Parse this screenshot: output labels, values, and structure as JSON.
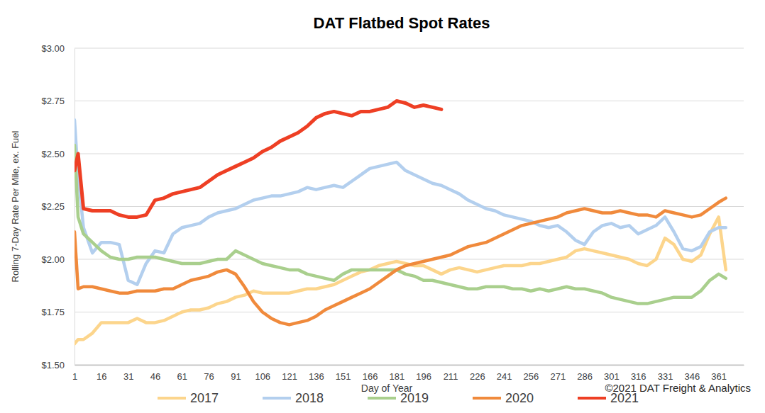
{
  "chart_data": {
    "type": "line",
    "title": "DAT Flatbed Spot Rates",
    "xlabel": "Day of Year",
    "ylabel": "Rolling 7-Day Rate Per Mile, ex. Fuel",
    "annotations": [
      "©2021 DAT Freight & Analytics"
    ],
    "grid": true,
    "legend": "bottom",
    "xlim": [
      1,
      375
    ],
    "xticks": [
      1,
      16,
      31,
      46,
      61,
      76,
      91,
      106,
      121,
      136,
      151,
      166,
      181,
      196,
      211,
      226,
      241,
      256,
      271,
      286,
      301,
      316,
      331,
      346,
      361
    ],
    "ylim": [
      1.5,
      3.0
    ],
    "yticks": [
      {
        "value": 1.5,
        "label": "$1.50"
      },
      {
        "value": 1.75,
        "label": "$1.75"
      },
      {
        "value": 2.0,
        "label": "$2.00"
      },
      {
        "value": 2.25,
        "label": "$2.25"
      },
      {
        "value": 2.5,
        "label": "$2.50"
      },
      {
        "value": 2.75,
        "label": "$2.75"
      },
      {
        "value": 3.0,
        "label": "$3.00"
      }
    ],
    "x": [
      1,
      3,
      6,
      11,
      16,
      21,
      26,
      31,
      36,
      41,
      46,
      51,
      56,
      61,
      66,
      71,
      76,
      81,
      86,
      91,
      96,
      101,
      106,
      111,
      116,
      121,
      126,
      131,
      136,
      141,
      146,
      151,
      156,
      161,
      166,
      171,
      176,
      181,
      186,
      191,
      196,
      201,
      206,
      211,
      216,
      221,
      226,
      231,
      236,
      241,
      246,
      251,
      256,
      261,
      266,
      271,
      276,
      281,
      286,
      291,
      296,
      301,
      306,
      311,
      316,
      321,
      326,
      331,
      336,
      341,
      346,
      351,
      356,
      361,
      365
    ],
    "series": [
      {
        "name": "2017",
        "color": "#fcd58c",
        "values": [
          1.6,
          1.62,
          1.62,
          1.65,
          1.7,
          1.7,
          1.7,
          1.7,
          1.72,
          1.7,
          1.7,
          1.71,
          1.73,
          1.75,
          1.76,
          1.76,
          1.77,
          1.79,
          1.8,
          1.82,
          1.83,
          1.85,
          1.84,
          1.84,
          1.84,
          1.84,
          1.85,
          1.86,
          1.86,
          1.87,
          1.88,
          1.9,
          1.92,
          1.94,
          1.95,
          1.97,
          1.98,
          1.99,
          1.98,
          1.97,
          1.97,
          1.95,
          1.93,
          1.95,
          1.96,
          1.95,
          1.94,
          1.95,
          1.96,
          1.97,
          1.97,
          1.97,
          1.98,
          1.98,
          1.99,
          2.0,
          2.01,
          2.04,
          2.05,
          2.04,
          2.03,
          2.02,
          2.01,
          2.0,
          1.98,
          1.97,
          2.0,
          2.1,
          2.07,
          2.0,
          1.99,
          2.02,
          2.12,
          2.2,
          1.95
        ]
      },
      {
        "name": "2018",
        "color": "#b3cfee",
        "values": [
          2.66,
          2.4,
          2.15,
          2.03,
          2.08,
          2.08,
          2.07,
          1.9,
          1.88,
          1.98,
          2.04,
          2.03,
          2.12,
          2.15,
          2.16,
          2.17,
          2.2,
          2.22,
          2.23,
          2.24,
          2.26,
          2.28,
          2.29,
          2.3,
          2.3,
          2.31,
          2.32,
          2.34,
          2.33,
          2.34,
          2.35,
          2.34,
          2.37,
          2.4,
          2.43,
          2.44,
          2.45,
          2.46,
          2.42,
          2.4,
          2.38,
          2.36,
          2.35,
          2.33,
          2.31,
          2.28,
          2.26,
          2.24,
          2.23,
          2.21,
          2.2,
          2.19,
          2.18,
          2.16,
          2.15,
          2.16,
          2.13,
          2.09,
          2.07,
          2.13,
          2.16,
          2.17,
          2.15,
          2.16,
          2.12,
          2.14,
          2.16,
          2.2,
          2.13,
          2.05,
          2.04,
          2.06,
          2.13,
          2.15,
          2.15
        ]
      },
      {
        "name": "2019",
        "color": "#a9cf8d",
        "values": [
          2.54,
          2.2,
          2.12,
          2.08,
          2.04,
          2.01,
          2.0,
          2.0,
          2.01,
          2.01,
          2.01,
          2.0,
          1.99,
          1.98,
          1.98,
          1.98,
          1.99,
          2.0,
          2.0,
          2.04,
          2.02,
          2.0,
          1.98,
          1.97,
          1.96,
          1.95,
          1.95,
          1.93,
          1.92,
          1.91,
          1.9,
          1.93,
          1.95,
          1.95,
          1.95,
          1.95,
          1.95,
          1.95,
          1.93,
          1.92,
          1.9,
          1.9,
          1.89,
          1.88,
          1.87,
          1.86,
          1.86,
          1.87,
          1.87,
          1.87,
          1.86,
          1.86,
          1.85,
          1.86,
          1.85,
          1.86,
          1.87,
          1.86,
          1.86,
          1.85,
          1.84,
          1.82,
          1.81,
          1.8,
          1.79,
          1.79,
          1.8,
          1.81,
          1.82,
          1.82,
          1.82,
          1.85,
          1.9,
          1.93,
          1.91
        ]
      },
      {
        "name": "2020",
        "color": "#f08a3c",
        "values": [
          2.13,
          1.86,
          1.87,
          1.87,
          1.86,
          1.85,
          1.84,
          1.84,
          1.85,
          1.85,
          1.85,
          1.86,
          1.86,
          1.88,
          1.9,
          1.91,
          1.92,
          1.94,
          1.95,
          1.93,
          1.87,
          1.8,
          1.75,
          1.72,
          1.7,
          1.69,
          1.7,
          1.71,
          1.73,
          1.76,
          1.78,
          1.8,
          1.82,
          1.84,
          1.86,
          1.89,
          1.92,
          1.95,
          1.97,
          1.98,
          1.99,
          2.0,
          2.01,
          2.02,
          2.04,
          2.06,
          2.07,
          2.08,
          2.1,
          2.12,
          2.14,
          2.16,
          2.17,
          2.18,
          2.19,
          2.2,
          2.22,
          2.23,
          2.24,
          2.23,
          2.22,
          2.22,
          2.23,
          2.22,
          2.21,
          2.21,
          2.2,
          2.23,
          2.22,
          2.21,
          2.2,
          2.21,
          2.24,
          2.27,
          2.29
        ]
      },
      {
        "name": "2021",
        "color": "#ee3f24",
        "values": [
          2.42,
          2.5,
          2.24,
          2.23,
          2.23,
          2.23,
          2.21,
          2.2,
          2.2,
          2.21,
          2.28,
          2.29,
          2.31,
          2.32,
          2.33,
          2.34,
          2.37,
          2.4,
          2.42,
          2.44,
          2.46,
          2.48,
          2.51,
          2.53,
          2.56,
          2.58,
          2.6,
          2.63,
          2.67,
          2.69,
          2.7,
          2.69,
          2.68,
          2.7,
          2.7,
          2.71,
          2.72,
          2.75,
          2.74,
          2.72,
          2.73,
          2.72,
          2.71,
          null,
          null,
          null,
          null,
          null,
          null,
          null,
          null,
          null,
          null,
          null,
          null,
          null,
          null,
          null,
          null,
          null,
          null,
          null,
          null,
          null,
          null,
          null,
          null,
          null,
          null,
          null,
          null,
          null,
          null,
          null,
          null
        ]
      }
    ]
  }
}
